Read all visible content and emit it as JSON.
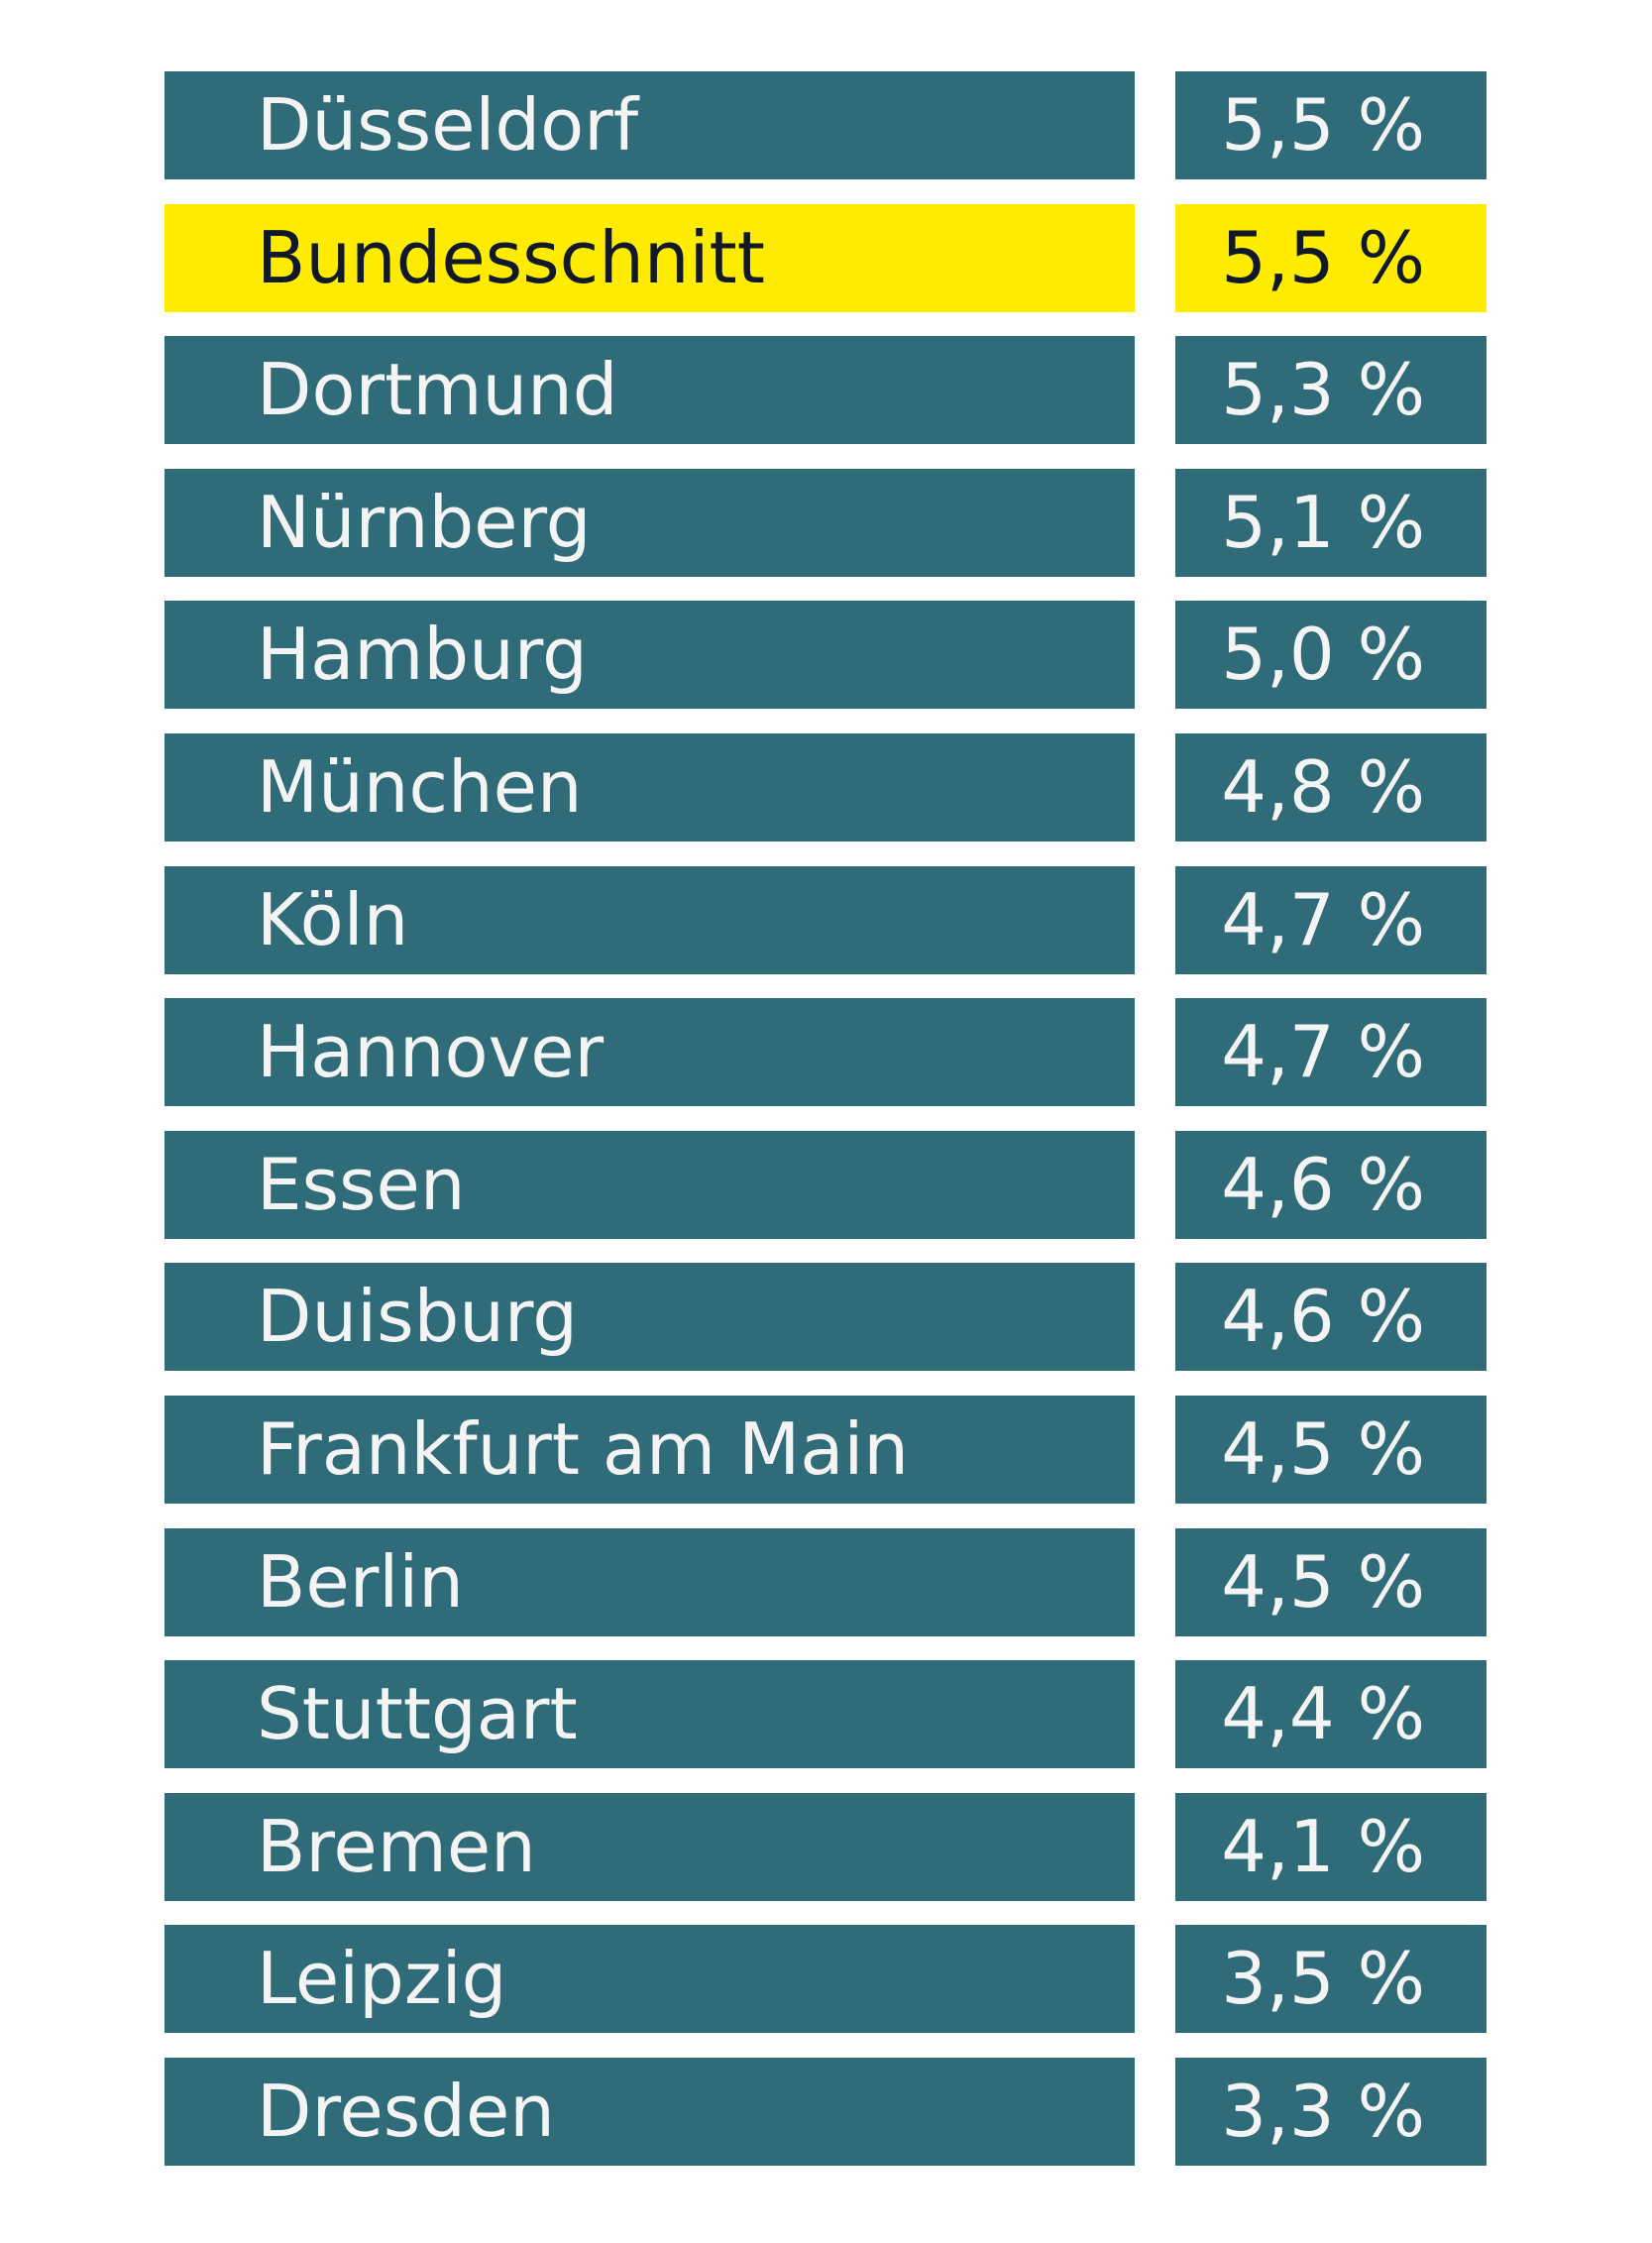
{
  "table": {
    "rows": [
      [
        "Düsseldorf",
        "5,5 %"
      ],
      [
        "Bundesschnitt",
        "5,5 %"
      ],
      [
        "Dortmund",
        "5,3 %"
      ],
      [
        "Nürnberg",
        "5,1 %"
      ],
      [
        "Hamburg",
        "5,0 %"
      ],
      [
        "München",
        "4,8 %"
      ],
      [
        "Köln",
        "4,7 %"
      ],
      [
        "Hannover",
        "4,7 %"
      ],
      [
        "Essen",
        "4,6 %"
      ],
      [
        "Duisburg",
        "4,6 %"
      ],
      [
        "Frankfurt am Main",
        "4,5 %"
      ],
      [
        "Berlin",
        "4,5 %"
      ],
      [
        "Stuttgart",
        "4,4 %"
      ],
      [
        "Bremen",
        "4,1 %"
      ],
      [
        "Leipzig",
        "3,5 %"
      ],
      [
        "Dresden",
        "3,3 %"
      ]
    ]
  }
}
